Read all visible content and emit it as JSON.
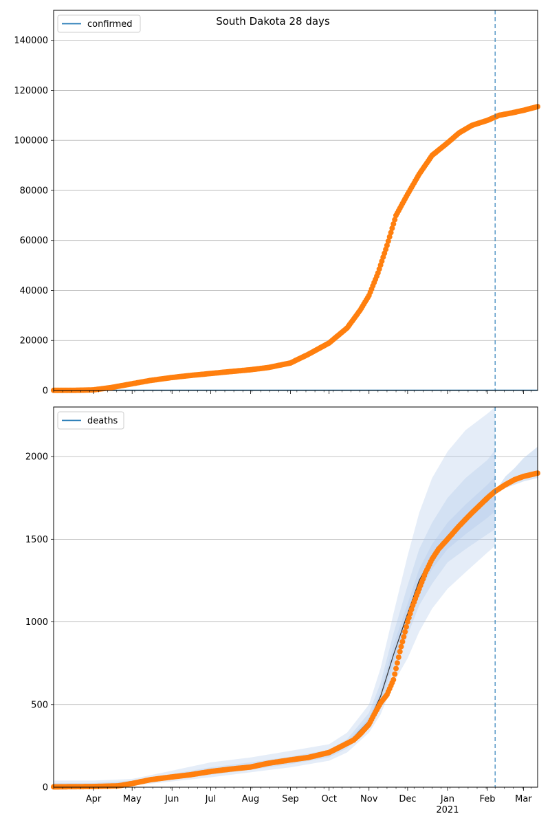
{
  "figure": {
    "title": "South Dakota 28 days"
  },
  "colors": {
    "model": "#1f77b4",
    "observed": "#ff7f0e",
    "band": "#aec7e8",
    "grid": "#b0b0b0",
    "forecast_line": "#1f77b4"
  },
  "chart_data": [
    {
      "type": "line",
      "panel": "top",
      "title": "South Dakota 28 days",
      "legend": [
        "confirmed"
      ],
      "legend_position": "upper-left",
      "grid": "horizontal",
      "ylim": [
        0,
        152000
      ],
      "yticks": [
        0,
        20000,
        40000,
        60000,
        80000,
        100000,
        120000,
        140000
      ],
      "x_range": [
        "2020-03-01",
        "2021-03-12"
      ],
      "forecast_start": "2021-02-07",
      "series": [
        {
          "name": "confirmed",
          "kind": "model-line",
          "x": [
            "2020-03-01",
            "2021-03-12"
          ],
          "y": [
            100,
            100
          ]
        },
        {
          "kind": "observed-points",
          "x": [
            "2020-03-01",
            "2020-03-20",
            "2020-04-01",
            "2020-04-15",
            "2020-05-01",
            "2020-05-15",
            "2020-06-01",
            "2020-06-15",
            "2020-07-01",
            "2020-07-15",
            "2020-08-01",
            "2020-08-15",
            "2020-09-01",
            "2020-09-15",
            "2020-10-01",
            "2020-10-15",
            "2020-10-25",
            "2020-11-01",
            "2020-11-08",
            "2020-11-15",
            "2020-11-22",
            "2020-12-01",
            "2020-12-10",
            "2020-12-20",
            "2021-01-01",
            "2021-01-10",
            "2021-01-20",
            "2021-02-01",
            "2021-02-10",
            "2021-02-20",
            "2021-03-01",
            "2021-03-12"
          ],
          "y": [
            50,
            100,
            250,
            1200,
            2700,
            4000,
            5200,
            6000,
            6800,
            7500,
            8300,
            9200,
            11000,
            14500,
            19000,
            25000,
            32000,
            38000,
            47000,
            58000,
            70000,
            78500,
            86500,
            94000,
            99000,
            103000,
            106000,
            108000,
            110000,
            111000,
            112000,
            113500
          ]
        }
      ]
    },
    {
      "type": "line",
      "panel": "bottom",
      "legend": [
        "deaths"
      ],
      "legend_position": "upper-left",
      "grid": "horizontal",
      "ylim": [
        0,
        2300
      ],
      "yticks": [
        0,
        500,
        1000,
        1500,
        2000
      ],
      "x_range": [
        "2020-03-01",
        "2021-03-12"
      ],
      "xticks": [
        {
          "date": "2020-04-01",
          "label": "Apr"
        },
        {
          "date": "2020-05-01",
          "label": "May"
        },
        {
          "date": "2020-06-01",
          "label": "Jun"
        },
        {
          "date": "2020-07-01",
          "label": "Jul"
        },
        {
          "date": "2020-08-01",
          "label": "Aug"
        },
        {
          "date": "2020-09-01",
          "label": "Sep"
        },
        {
          "date": "2020-10-01",
          "label": "Oct"
        },
        {
          "date": "2020-11-01",
          "label": "Nov"
        },
        {
          "date": "2020-12-01",
          "label": "Dec"
        },
        {
          "date": "2021-01-01",
          "label": "Jan",
          "sublabel": "2021"
        },
        {
          "date": "2021-02-01",
          "label": "Feb"
        },
        {
          "date": "2021-03-01",
          "label": "Mar"
        }
      ],
      "forecast_start": "2021-02-07",
      "series": [
        {
          "name": "deaths",
          "kind": "model-line",
          "x": [
            "2020-03-01",
            "2020-04-01",
            "2020-05-01",
            "2020-06-01",
            "2020-07-01",
            "2020-08-01",
            "2020-09-01",
            "2020-10-01",
            "2020-10-15",
            "2020-11-01",
            "2020-11-10",
            "2020-11-20",
            "2020-12-01",
            "2020-12-10",
            "2020-12-20",
            "2021-01-01",
            "2021-01-15",
            "2021-02-01",
            "2021-02-07"
          ],
          "y": [
            5,
            5,
            25,
            60,
            95,
            125,
            160,
            200,
            260,
            400,
            550,
            800,
            1050,
            1250,
            1400,
            1520,
            1620,
            1730,
            1780
          ]
        },
        {
          "kind": "observed-points",
          "x": [
            "2020-03-01",
            "2020-04-01",
            "2020-04-20",
            "2020-05-01",
            "2020-05-15",
            "2020-06-01",
            "2020-06-15",
            "2020-07-01",
            "2020-07-15",
            "2020-08-01",
            "2020-08-15",
            "2020-09-01",
            "2020-09-15",
            "2020-10-01",
            "2020-10-10",
            "2020-10-20",
            "2020-10-25",
            "2020-11-01",
            "2020-11-05",
            "2020-11-10",
            "2020-11-15",
            "2020-11-20",
            "2020-11-25",
            "2020-12-01",
            "2020-12-05",
            "2020-12-10",
            "2020-12-15",
            "2020-12-20",
            "2020-12-25",
            "2021-01-01",
            "2021-01-10",
            "2021-01-20",
            "2021-02-01",
            "2021-02-07",
            "2021-02-15",
            "2021-02-22",
            "2021-03-01",
            "2021-03-12"
          ],
          "y": [
            2,
            4,
            8,
            22,
            45,
            62,
            75,
            95,
            108,
            122,
            145,
            165,
            180,
            210,
            245,
            285,
            320,
            380,
            440,
            510,
            560,
            650,
            820,
            1000,
            1100,
            1200,
            1300,
            1380,
            1440,
            1500,
            1580,
            1660,
            1750,
            1790,
            1830,
            1860,
            1880,
            1900
          ]
        }
      ],
      "bands": [
        {
          "level": "outer",
          "x": [
            "2020-03-01",
            "2020-04-01",
            "2020-05-01",
            "2020-06-01",
            "2020-07-01",
            "2020-08-01",
            "2020-09-01",
            "2020-10-01",
            "2020-10-15",
            "2020-11-01",
            "2020-11-10",
            "2020-11-20",
            "2020-12-01",
            "2020-12-10",
            "2020-12-20",
            "2021-01-01",
            "2021-01-15",
            "2021-02-01",
            "2021-02-07"
          ],
          "lower": [
            0,
            0,
            10,
            35,
            60,
            90,
            120,
            160,
            210,
            330,
            440,
            630,
            780,
            940,
            1080,
            1200,
            1300,
            1420,
            1460
          ],
          "upper": [
            40,
            40,
            50,
            100,
            150,
            180,
            220,
            260,
            330,
            500,
            720,
            1050,
            1400,
            1660,
            1870,
            2030,
            2160,
            2260,
            2300
          ]
        },
        {
          "level": "middle",
          "x": [
            "2020-03-01",
            "2020-04-01",
            "2020-05-01",
            "2020-06-01",
            "2020-07-01",
            "2020-08-01",
            "2020-09-01",
            "2020-10-01",
            "2020-10-15",
            "2020-11-01",
            "2020-11-10",
            "2020-11-20",
            "2020-12-01",
            "2020-12-10",
            "2020-12-20",
            "2021-01-01",
            "2021-01-15",
            "2021-02-01",
            "2021-02-07"
          ],
          "lower": [
            0,
            0,
            15,
            45,
            75,
            105,
            140,
            180,
            235,
            360,
            490,
            710,
            920,
            1100,
            1230,
            1360,
            1440,
            1530,
            1560
          ],
          "upper": [
            25,
            25,
            40,
            80,
            120,
            150,
            185,
            225,
            290,
            450,
            630,
            930,
            1220,
            1440,
            1600,
            1750,
            1870,
            1980,
            2040
          ]
        },
        {
          "level": "inner",
          "x": [
            "2020-03-01",
            "2020-04-01",
            "2020-05-01",
            "2020-06-01",
            "2020-07-01",
            "2020-08-01",
            "2020-09-01",
            "2020-10-01",
            "2020-10-15",
            "2020-11-01",
            "2020-11-10",
            "2020-11-20",
            "2020-12-01",
            "2020-12-10",
            "2020-12-20",
            "2021-01-01",
            "2021-01-15",
            "2021-02-01",
            "2021-02-07"
          ],
          "lower": [
            0,
            0,
            20,
            52,
            85,
            115,
            150,
            190,
            248,
            380,
            520,
            750,
            990,
            1180,
            1320,
            1440,
            1530,
            1630,
            1670
          ],
          "upper": [
            15,
            15,
            32,
            70,
            105,
            135,
            170,
            212,
            272,
            420,
            580,
            860,
            1110,
            1320,
            1470,
            1600,
            1710,
            1830,
            1880
          ]
        },
        {
          "level": "projection",
          "x": [
            "2021-02-07",
            "2021-02-15",
            "2021-02-22",
            "2021-03-01",
            "2021-03-12"
          ],
          "lower": [
            1790,
            1810,
            1830,
            1850,
            1870
          ],
          "upper": [
            1790,
            1880,
            1930,
            1990,
            2060
          ]
        }
      ]
    }
  ]
}
